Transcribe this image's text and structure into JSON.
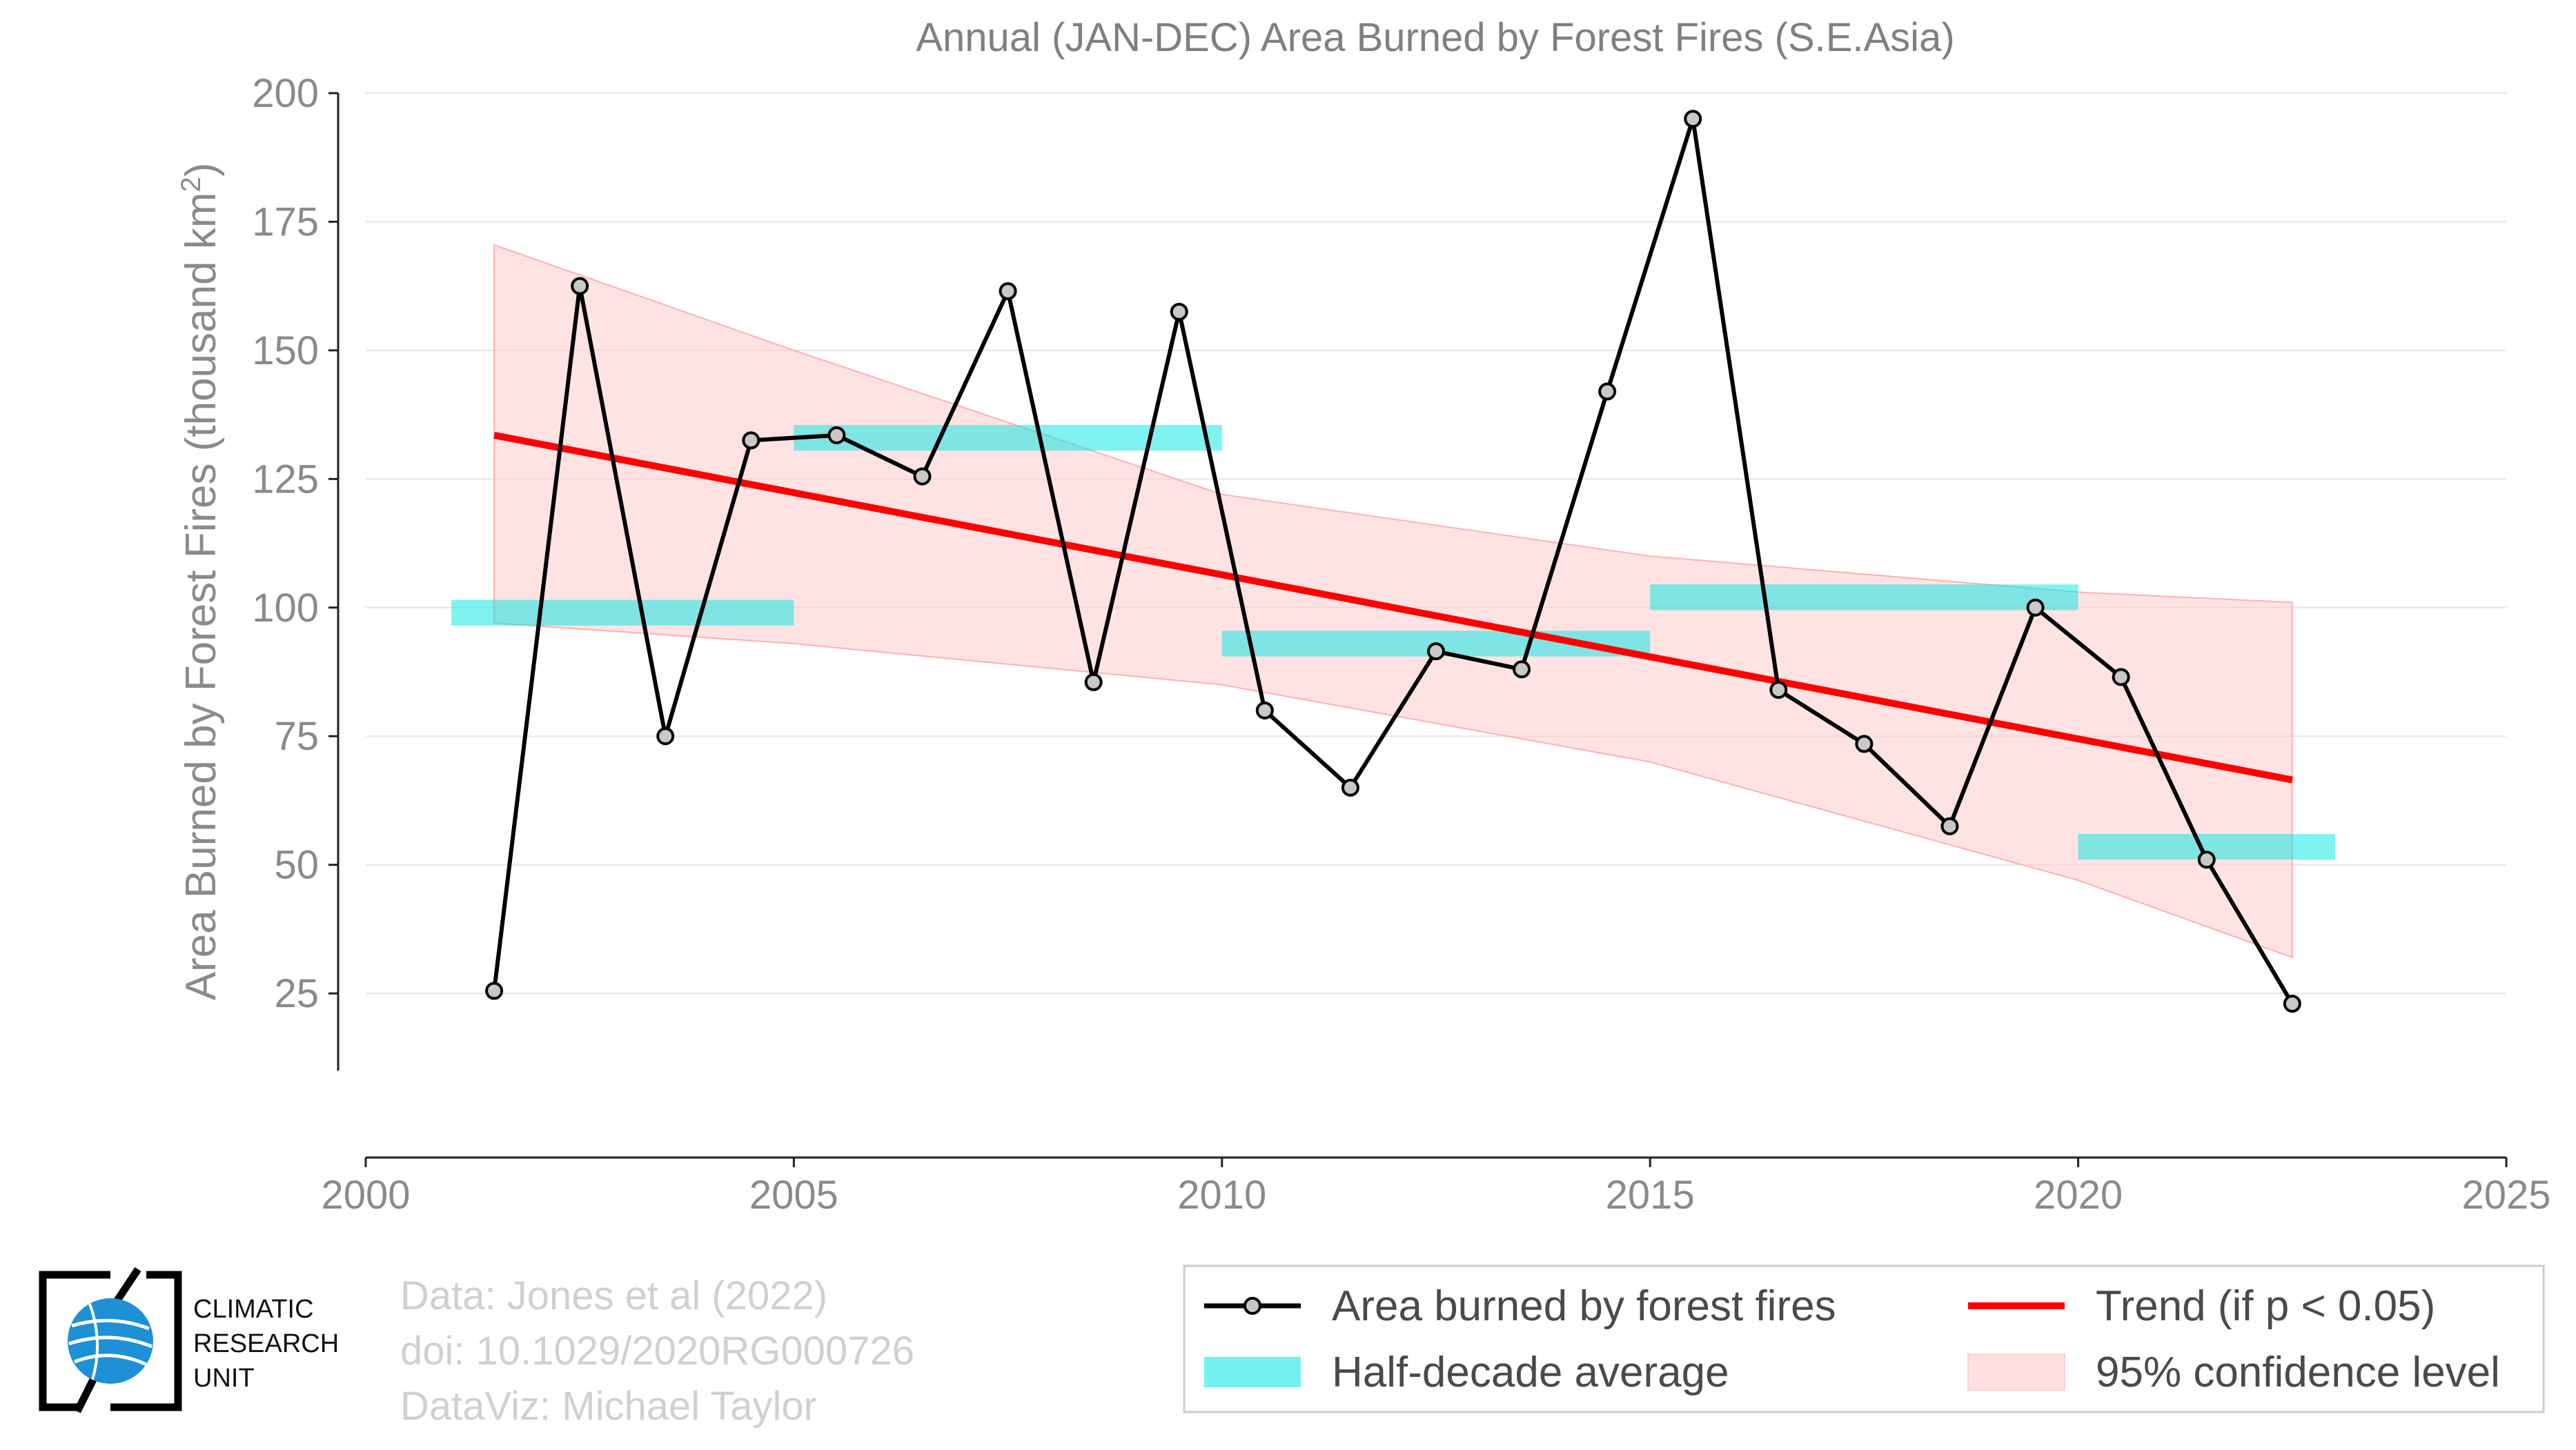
{
  "chart_data": {
    "type": "line",
    "title": "Annual (JAN-DEC) Area Burned by Forest Fires (S.E.Asia)",
    "ylabel": "Area Burned by Forest Fires (thousand km",
    "ylabel_sup": "2",
    "ylabel_end": ")",
    "xlabel": "",
    "xlim": [
      2000,
      2025
    ],
    "ylim": [
      10,
      200
    ],
    "xticks": [
      2000,
      2005,
      2010,
      2015,
      2020,
      2025
    ],
    "yticks": [
      25,
      50,
      75,
      100,
      125,
      150,
      175,
      200
    ],
    "grid": true,
    "legend_position": "bottom-right",
    "series": [
      {
        "name": "Area burned by forest fires",
        "type": "line",
        "color": "#000000",
        "marker_fill": "#c8c8c8",
        "x": [
          2001.5,
          2002.5,
          2003.5,
          2004.5,
          2005.5,
          2006.5,
          2007.5,
          2008.5,
          2009.5,
          2010.5,
          2011.5,
          2012.5,
          2013.5,
          2014.5,
          2015.5,
          2016.5,
          2017.5,
          2018.5,
          2019.5,
          2020.5,
          2021.5,
          2022.5
        ],
        "y": [
          25.5,
          162.5,
          75,
          132.5,
          133.5,
          125.5,
          161.5,
          85.5,
          157.5,
          80,
          65,
          91.5,
          88,
          142,
          195,
          84,
          73.5,
          57.5,
          100,
          86.5,
          51,
          23
        ]
      },
      {
        "name": "Half-decade average",
        "type": "step-bars",
        "color": "#00e5e5",
        "segments": [
          {
            "x0": 2001,
            "x1": 2005,
            "y0": 96.5,
            "y1": 101.5
          },
          {
            "x0": 2005,
            "x1": 2010,
            "y0": 130.5,
            "y1": 135.5
          },
          {
            "x0": 2010,
            "x1": 2015,
            "y0": 90.5,
            "y1": 95.5
          },
          {
            "x0": 2015,
            "x1": 2020,
            "y0": 99.5,
            "y1": 104.5
          },
          {
            "x0": 2020,
            "x1": 2023,
            "y0": 51,
            "y1": 56
          }
        ]
      },
      {
        "name": "Trend (if p < 0.05)",
        "type": "line",
        "color": "#ff0000",
        "x": [
          2001.5,
          2022.5
        ],
        "y": [
          133.5,
          66.5
        ]
      },
      {
        "name": "95% confidence level",
        "type": "band",
        "color": "#ffcccc",
        "x": [
          2001.5,
          2005,
          2010,
          2015,
          2020,
          2022.5
        ],
        "upper": [
          170.5,
          150,
          122,
          110,
          103,
          101
        ],
        "lower": [
          97,
          93,
          85,
          70,
          47,
          32
        ]
      }
    ]
  },
  "legend": {
    "items": [
      {
        "label": "Area burned by forest fires",
        "kind": "line-marker"
      },
      {
        "label": "Trend (if p < 0.05)",
        "kind": "red-line"
      },
      {
        "label": "Half-decade average",
        "kind": "cyan-patch"
      },
      {
        "label": "95% confidence level",
        "kind": "pink-patch"
      }
    ]
  },
  "credits": {
    "line1": "Data: Jones et al (2022)",
    "line2": "doi: 10.1029/2020RG000726",
    "line3": "DataViz: Michael Taylor"
  },
  "logo": {
    "line1": "CLIMATIC",
    "line2": "RESEARCH",
    "line3": "UNIT",
    "icon": "globe-icon"
  }
}
